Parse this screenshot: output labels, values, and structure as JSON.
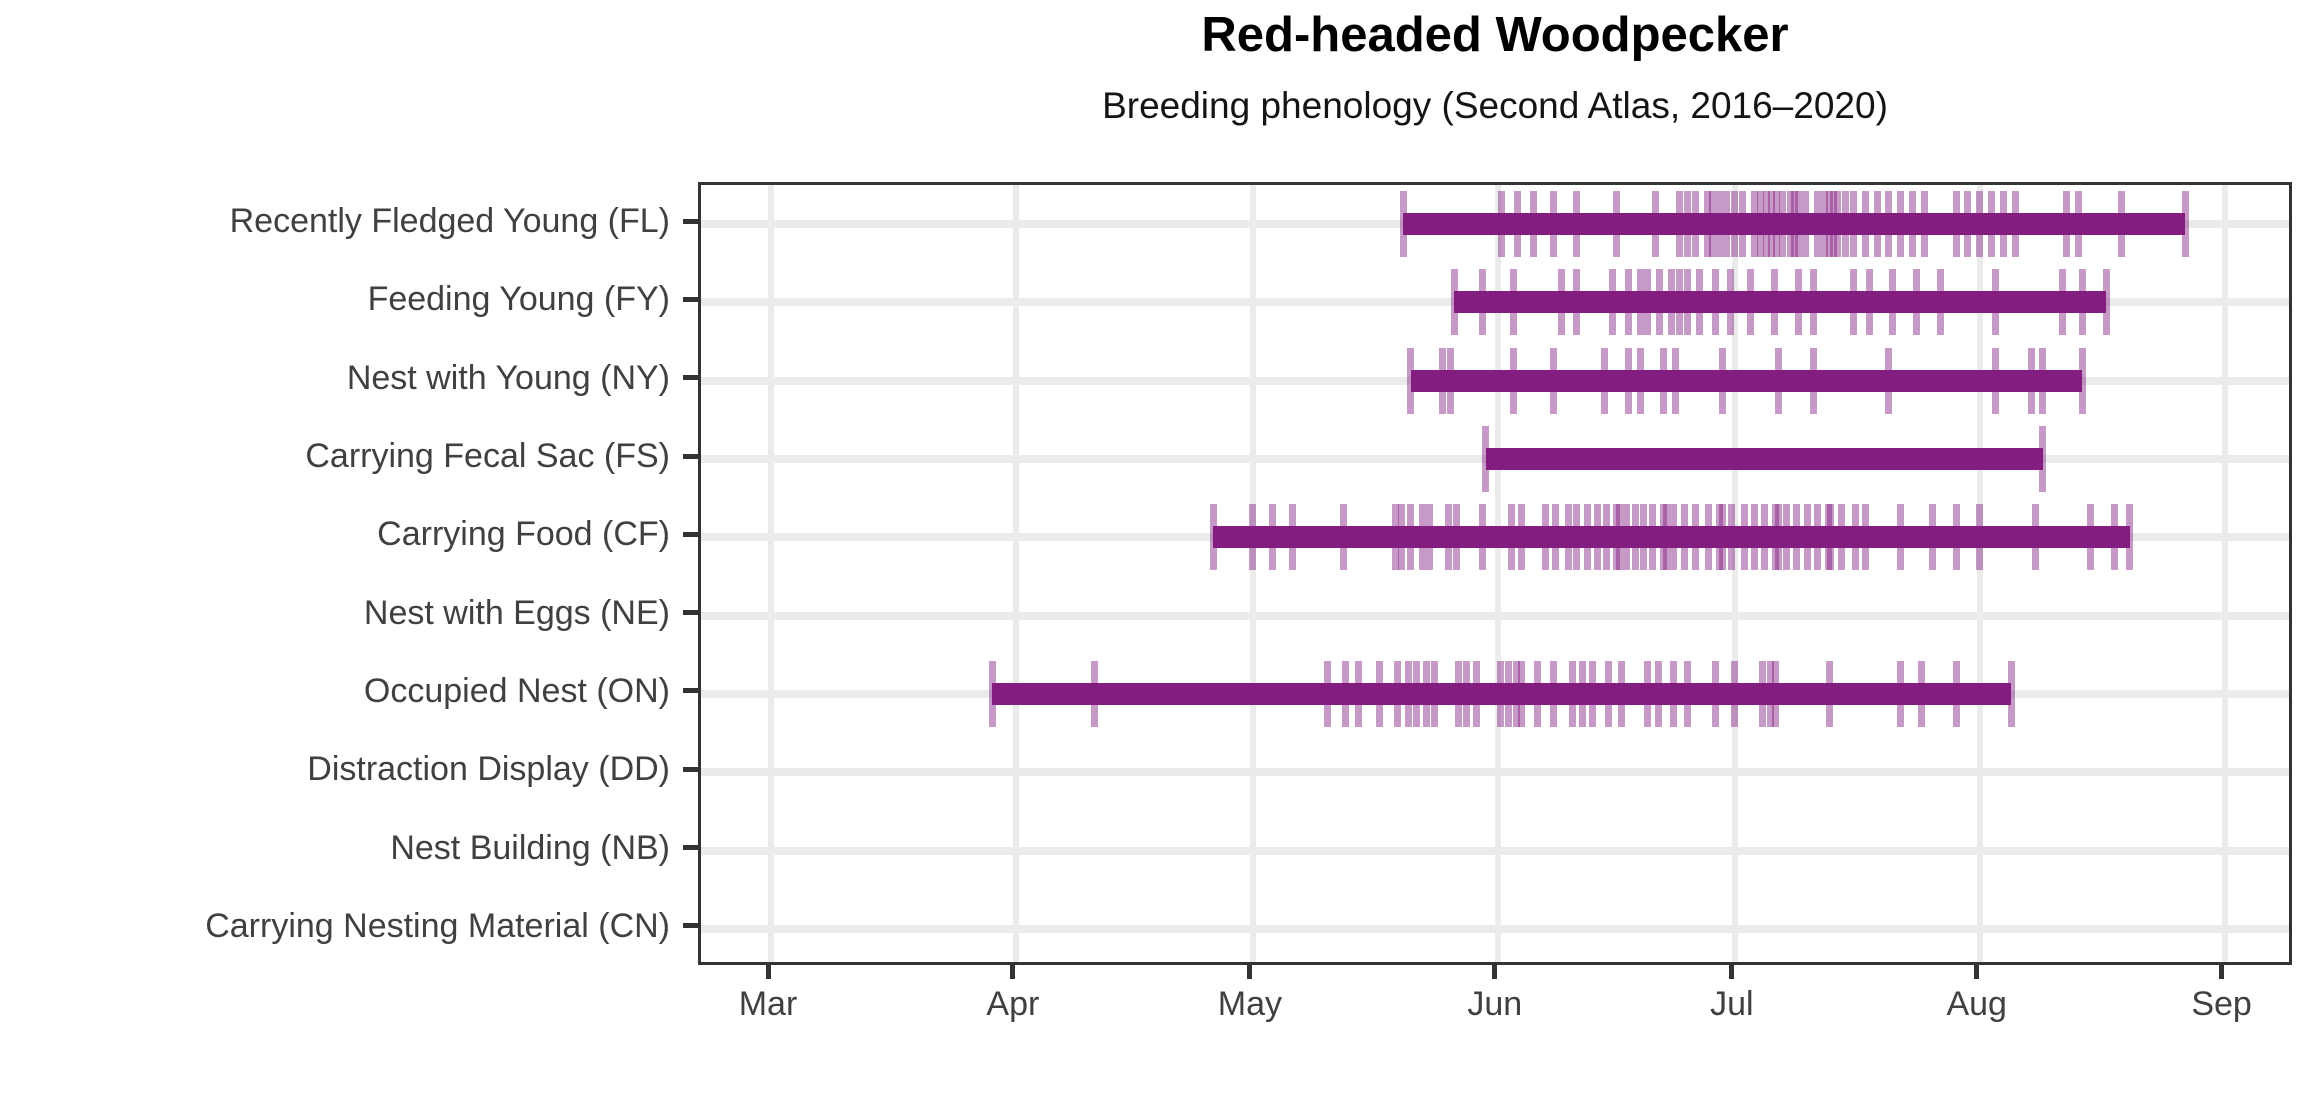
{
  "title": "Red-headed Woodpecker",
  "subtitle": "Breeding phenology (Second Atlas, 2016–2020)",
  "colors": {
    "bar": "#831d80",
    "rug_alpha": 0.45,
    "grid": "#ebebeb",
    "panel_border": "#333333",
    "axis_tick_mark": "#333333",
    "axis_text": "#404040",
    "background": "#ffffff"
  },
  "chart_data": {
    "type": "range-timeline-with-rug",
    "title": "Red-headed Woodpecker",
    "subtitle": "Breeding phenology (Second Atlas, 2016–2020)",
    "grid": "on",
    "legend": "none",
    "x_axis": {
      "tick_labels": [
        "Mar",
        "Apr",
        "May",
        "Jun",
        "Jul",
        "Aug",
        "Sep"
      ],
      "tick_days_from_mar1": [
        0,
        31,
        61,
        92,
        122,
        153,
        184
      ],
      "domain_days_from_mar1": [
        -8.9,
        192.9
      ]
    },
    "categories": [
      "Recently Fledged Young (FL)",
      "Feeding Young (FY)",
      "Nest with Young (NY)",
      "Carrying Fecal Sac (FS)",
      "Carrying Food (CF)",
      "Nest with Eggs (NE)",
      "Occupied Nest (ON)",
      "Distraction Display (DD)",
      "Nest Building (NB)",
      "Carrying Nesting Material (CN)"
    ],
    "series": [
      {
        "code": "FL",
        "category": "Recently Fledged Young (FL)",
        "range_days": [
          80,
          179
        ],
        "range_dates": [
          "May 20",
          "Aug 27"
        ],
        "obs_days": [
          80,
          92.5,
          94.5,
          96.5,
          99,
          102,
          107,
          112,
          115,
          116,
          117,
          118.5,
          119.2,
          120,
          121,
          122,
          123,
          124.5,
          125.3,
          126,
          126.6,
          127.3,
          128,
          129,
          129.5,
          130,
          131,
          132.5,
          133.3,
          134,
          134.5,
          135,
          136,
          137,
          138.5,
          140,
          141.5,
          143,
          144.5,
          146,
          150,
          151.5,
          153,
          154.5,
          156,
          157.5,
          164,
          165.5,
          171,
          179
        ]
      },
      {
        "code": "FY",
        "category": "Feeding Young (FY)",
        "range_days": [
          86.5,
          169
        ],
        "range_dates": [
          "May 26",
          "Aug 17"
        ],
        "obs_days": [
          86.5,
          90,
          94,
          100,
          102,
          106.5,
          108.5,
          110,
          111,
          112.5,
          114,
          115,
          116,
          117.5,
          119.5,
          121.5,
          124,
          127,
          130,
          132,
          137,
          139,
          142,
          145,
          148,
          155,
          163.5,
          166,
          169
        ]
      },
      {
        "code": "NY",
        "category": "Nest with Young (NY)",
        "range_days": [
          81,
          166
        ],
        "range_dates": [
          "May 21",
          "Aug 14"
        ],
        "obs_days": [
          81,
          85,
          86,
          94,
          99,
          105.5,
          108.5,
          110,
          113,
          114.5,
          120.5,
          127.5,
          132,
          141.5,
          155,
          159.5,
          161,
          166
        ]
      },
      {
        "code": "FS",
        "category": "Carrying Fecal Sac (FS)",
        "range_days": [
          90.5,
          161
        ],
        "range_dates": [
          "May 30",
          "Aug 9"
        ],
        "obs_days": [
          90.5,
          161
        ]
      },
      {
        "code": "CF",
        "category": "Carrying Food (CF)",
        "range_days": [
          56,
          172
        ],
        "range_dates": [
          "Apr 26",
          "Aug 20"
        ],
        "obs_days": [
          56,
          61,
          63.5,
          66,
          72.5,
          79,
          79.8,
          81,
          82.5,
          83.3,
          85.7,
          86.8,
          90,
          93.7,
          95,
          98,
          99.3,
          101,
          102,
          103.3,
          104.6,
          105.7,
          107,
          107.4,
          108.3,
          109.4,
          110.4,
          111.6,
          113,
          113.3,
          114.3,
          115.6,
          117,
          118.7,
          120,
          120.4,
          121.6,
          123.2,
          124.5,
          125.8,
          127.2,
          127.5,
          128.5,
          129.8,
          131.2,
          132.5,
          133.8,
          134.1,
          135.5,
          137.3,
          138.6,
          143,
          147,
          150,
          153,
          160,
          167,
          170,
          172
        ]
      },
      {
        "code": "NE",
        "category": "Nest with Eggs (NE)",
        "range_days": null,
        "range_dates": null,
        "obs_days": []
      },
      {
        "code": "ON",
        "category": "Occupied Nest (ON)",
        "range_days": [
          28,
          157
        ],
        "range_dates": [
          "Mar 29",
          "Aug 5"
        ],
        "obs_days": [
          28,
          41,
          70.5,
          72.7,
          74.4,
          77,
          79.3,
          80.7,
          81.7,
          83,
          84,
          87,
          88,
          89.3,
          92.4,
          93.4,
          94.4,
          95,
          97,
          99,
          101.4,
          102.7,
          104,
          106,
          107.7,
          111,
          112.3,
          114.3,
          116,
          119.6,
          122,
          125.5,
          126.5,
          127.2,
          134,
          143,
          145.6,
          150,
          157
        ]
      },
      {
        "code": "DD",
        "category": "Distraction Display (DD)",
        "range_days": null,
        "range_dates": null,
        "obs_days": []
      },
      {
        "code": "NB",
        "category": "Nest Building (NB)",
        "range_days": null,
        "range_dates": null,
        "obs_days": []
      },
      {
        "code": "CN",
        "category": "Carrying Nesting Material (CN)",
        "range_days": null,
        "range_dates": null,
        "obs_days": []
      }
    ]
  }
}
